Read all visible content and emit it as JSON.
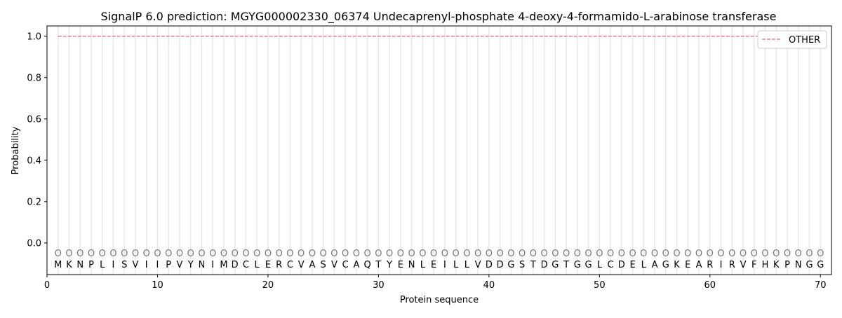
{
  "chart_data": {
    "type": "line",
    "title": "SignalP 6.0 prediction: MGYG000002330_06374 Undecaprenyl-phosphate 4-deoxy-4-formamido-L-arabinose transferase",
    "xlabel": "Protein sequence",
    "ylabel": "Probability",
    "xlim": [
      0,
      71
    ],
    "ylim": [
      -0.153,
      1.05
    ],
    "xticks": [
      0,
      10,
      20,
      30,
      40,
      50,
      60,
      70
    ],
    "yticks": [
      0.0,
      0.2,
      0.4,
      0.6,
      0.8,
      1.0
    ],
    "ytick_labels": [
      "0.0",
      "0.2",
      "0.4",
      "0.6",
      "0.8",
      "1.0"
    ],
    "sequence": [
      "M",
      "K",
      "N",
      "P",
      "L",
      "I",
      "S",
      "V",
      "I",
      "I",
      "P",
      "V",
      "Y",
      "N",
      "I",
      "M",
      "D",
      "C",
      "L",
      "E",
      "R",
      "C",
      "V",
      "A",
      "S",
      "V",
      "C",
      "A",
      "Q",
      "T",
      "Y",
      "E",
      "N",
      "L",
      "E",
      "I",
      "L",
      "L",
      "V",
      "D",
      "D",
      "G",
      "S",
      "T",
      "D",
      "G",
      "T",
      "G",
      "G",
      "L",
      "C",
      "D",
      "E",
      "L",
      "A",
      "G",
      "K",
      "E",
      "A",
      "R",
      "I",
      "R",
      "V",
      "F",
      "H",
      "K",
      "P",
      "N",
      "G",
      "G"
    ],
    "predicted_labels": "OOOOOOOOOOOOOOOOOOOOOOOOOOOOOOOOOOOOOOOOOOOOOOOOOOOOOOOOOOOOOOOOOOOOOO",
    "series": [
      {
        "name": "OTHER",
        "color": "#f08080",
        "style": "dashed",
        "x_range": [
          1,
          70
        ],
        "value": 1.0
      }
    ],
    "legend_placement": "top-right",
    "grid": "vertical lines at each residue"
  }
}
